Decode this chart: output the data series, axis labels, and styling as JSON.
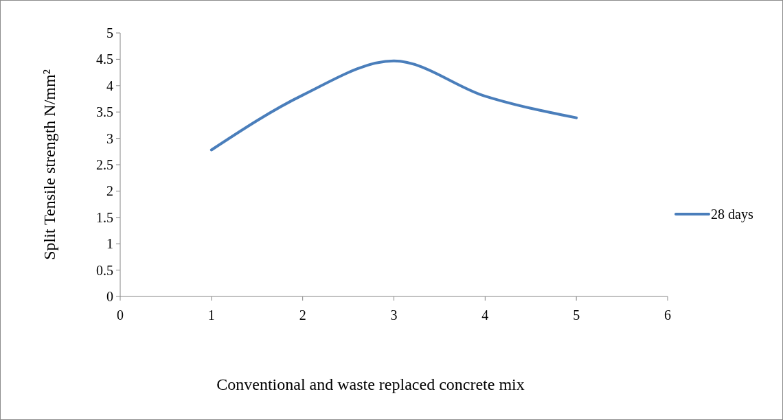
{
  "chart_data": {
    "type": "line",
    "xlabel": "Conventional and waste replaced concrete mix",
    "ylabel": "Split Tensile strength N/mm²",
    "x": [
      1,
      2,
      3,
      4,
      5
    ],
    "series": [
      {
        "name": "28 days",
        "color": "#4a7ebb",
        "values": [
          2.78,
          3.82,
          4.47,
          3.8,
          3.39
        ]
      }
    ],
    "xlim": [
      0,
      6
    ],
    "xticks": [
      0,
      1,
      2,
      3,
      4,
      5,
      6
    ],
    "ylim": [
      0,
      5
    ],
    "yticks": [
      0,
      0.5,
      1,
      1.5,
      2,
      2.5,
      3,
      3.5,
      4,
      4.5,
      5
    ],
    "legend": "right",
    "grid": false,
    "marker": "none",
    "line_style": "solid"
  }
}
